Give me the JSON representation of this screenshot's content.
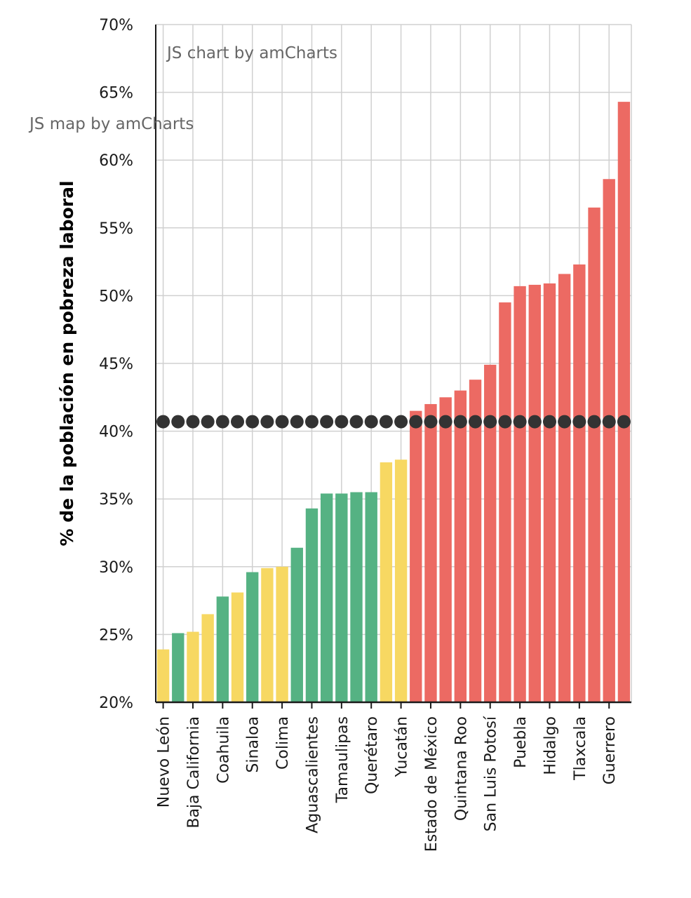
{
  "credits": {
    "chart": "JS chart by amCharts",
    "map": "JS map by amCharts"
  },
  "colors": {
    "yellow": "#f7d862",
    "green": "#55b283",
    "red": "#ec6a63",
    "dot": "#333333",
    "grid": "#d0d0d0",
    "axis": "#1a1a1a"
  },
  "chart_data": {
    "type": "bar",
    "ylabel": "% de la población en pobreza laboral",
    "xlabel": "",
    "ylim": [
      20,
      70
    ],
    "y_ticks": [
      "20%",
      "25%",
      "30%",
      "35%",
      "40%",
      "45%",
      "50%",
      "55%",
      "60%",
      "65%",
      "70%"
    ],
    "grid": true,
    "reference_line": {
      "type": "dots",
      "value": 40.7
    },
    "categories": [
      "Nuevo León",
      "",
      "Baja California",
      "",
      "Coahuila",
      "",
      "Sinaloa",
      "",
      "Colima",
      "",
      "Aguascalientes",
      "",
      "Tamaulipas",
      "",
      "Querétaro",
      "",
      "Yucatán",
      "",
      "Estado de México",
      "",
      "Quintana Roo",
      "",
      "San Luis Potosí",
      "",
      "Puebla",
      "",
      "Hidalgo",
      "",
      "Tlaxcala",
      "",
      "Guerrero",
      ""
    ],
    "values": [
      23.9,
      25.1,
      25.2,
      26.5,
      27.8,
      28.1,
      29.6,
      29.9,
      30.0,
      31.4,
      34.3,
      35.4,
      35.4,
      35.5,
      35.5,
      37.7,
      37.9,
      41.5,
      42.0,
      42.5,
      43.0,
      43.8,
      44.9,
      49.5,
      50.7,
      50.8,
      50.9,
      51.6,
      52.3,
      56.5,
      58.6,
      64.3
    ],
    "bar_colors": [
      "yellow",
      "green",
      "yellow",
      "yellow",
      "green",
      "yellow",
      "green",
      "yellow",
      "yellow",
      "green",
      "green",
      "green",
      "green",
      "green",
      "green",
      "yellow",
      "yellow",
      "red",
      "red",
      "red",
      "red",
      "red",
      "red",
      "red",
      "red",
      "red",
      "red",
      "red",
      "red",
      "red",
      "red",
      "red"
    ]
  }
}
